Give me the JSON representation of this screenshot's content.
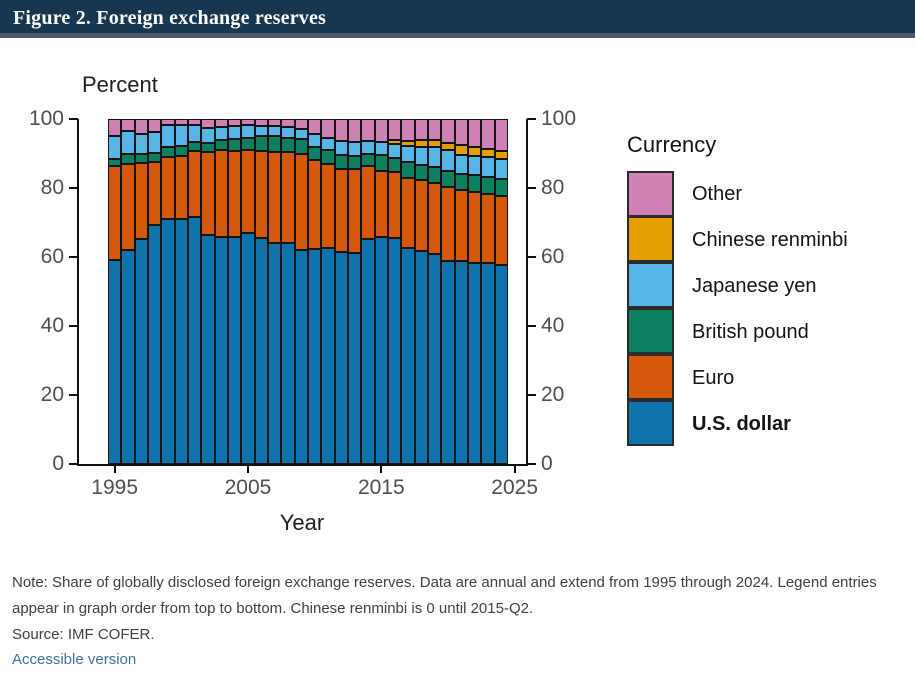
{
  "header": {
    "title": "Figure 2. Foreign exchange reserves"
  },
  "chart": {
    "percent_label": "Percent",
    "xlabel": "Year",
    "y_ticks": [
      100,
      80,
      60,
      40,
      20,
      0
    ],
    "x_ticks": [
      1995,
      2005,
      2015,
      2025
    ]
  },
  "legend": {
    "title": "Currency",
    "items": [
      {
        "label": "Other",
        "color": "#ce7fb4",
        "bold": false
      },
      {
        "label": "Chinese renminbi",
        "color": "#e3a000",
        "bold": false
      },
      {
        "label": "Japanese yen",
        "color": "#58b5e8",
        "bold": false
      },
      {
        "label": "British pound",
        "color": "#0f7f62",
        "bold": false
      },
      {
        "label": "Euro",
        "color": "#d4590d",
        "bold": false
      },
      {
        "label": "U.S. dollar",
        "color": "#0f72ab",
        "bold": true
      }
    ]
  },
  "chart_data": {
    "type": "bar",
    "variant": "stacked-100-percent",
    "title": "Figure 2. Foreign exchange reserves",
    "xlabel": "Year",
    "ylabel": "Percent",
    "ylim": [
      0,
      100
    ],
    "categories": [
      1995,
      1996,
      1997,
      1998,
      1999,
      2000,
      2001,
      2002,
      2003,
      2004,
      2005,
      2006,
      2007,
      2008,
      2009,
      2010,
      2011,
      2012,
      2013,
      2014,
      2015,
      2016,
      2017,
      2018,
      2019,
      2020,
      2021,
      2022,
      2023,
      2024
    ],
    "series": [
      {
        "name": "U.S. dollar",
        "color": "#0f72ab",
        "values": [
          59.0,
          62.1,
          65.2,
          69.3,
          71.0,
          71.1,
          71.5,
          66.5,
          65.9,
          65.9,
          66.9,
          65.5,
          64.1,
          64.1,
          62.1,
          62.2,
          62.7,
          61.5,
          61.2,
          65.1,
          65.7,
          65.4,
          62.7,
          61.7,
          60.8,
          58.9,
          58.8,
          58.4,
          58.4,
          57.8
        ]
      },
      {
        "name": "Euro",
        "color": "#d4590d",
        "values": [
          27.3,
          25.0,
          22.1,
          18.1,
          17.9,
          18.3,
          19.2,
          23.8,
          25.2,
          24.8,
          24.1,
          25.1,
          26.3,
          26.4,
          27.7,
          25.8,
          24.4,
          24.1,
          24.2,
          21.2,
          19.1,
          19.1,
          20.2,
          20.7,
          20.6,
          21.3,
          20.6,
          20.5,
          20.0,
          19.8
        ]
      },
      {
        "name": "British pound",
        "color": "#0f7f62",
        "values": [
          2.1,
          2.7,
          2.6,
          2.7,
          2.9,
          2.8,
          2.7,
          2.8,
          2.8,
          3.4,
          3.6,
          4.4,
          4.7,
          4.0,
          4.3,
          3.9,
          3.8,
          4.0,
          4.0,
          3.7,
          4.7,
          4.3,
          4.5,
          4.4,
          4.6,
          4.7,
          4.8,
          4.9,
          4.8,
          5.0
        ]
      },
      {
        "name": "Japanese yen",
        "color": "#58b5e8",
        "values": [
          6.8,
          6.7,
          5.8,
          6.2,
          6.4,
          6.1,
          5.0,
          4.4,
          3.9,
          3.8,
          3.6,
          3.1,
          2.9,
          3.1,
          2.9,
          3.7,
          3.6,
          4.1,
          3.8,
          3.5,
          3.8,
          4.0,
          4.9,
          5.2,
          5.9,
          6.0,
          5.5,
          5.5,
          5.7,
          5.8
        ]
      },
      {
        "name": "Chinese renminbi",
        "color": "#e3a000",
        "values": [
          0,
          0,
          0,
          0,
          0,
          0,
          0,
          0,
          0,
          0,
          0,
          0,
          0,
          0,
          0,
          0,
          0,
          0,
          0,
          0,
          0,
          1.1,
          1.2,
          1.9,
          1.9,
          2.3,
          2.8,
          2.7,
          2.3,
          2.2
        ]
      },
      {
        "name": "Other",
        "color": "#ce7fb4",
        "values": [
          4.8,
          3.5,
          4.3,
          3.7,
          1.8,
          1.7,
          1.6,
          2.5,
          2.2,
          2.1,
          1.8,
          1.9,
          2.0,
          2.4,
          3.0,
          4.4,
          5.5,
          6.3,
          6.8,
          6.5,
          6.7,
          6.1,
          6.5,
          6.1,
          6.2,
          6.8,
          7.5,
          8.0,
          8.8,
          9.4
        ]
      }
    ],
    "legend_position": "right",
    "grid": false
  },
  "notes": {
    "note": "Note: Share of globally disclosed foreign exchange reserves. Data are annual and extend from 1995 through 2024. Legend entries appear in graph order from top to bottom. Chinese renminbi is 0 until 2015-Q2.",
    "source": "Source: IMF COFER.",
    "link": "Accessible version"
  }
}
